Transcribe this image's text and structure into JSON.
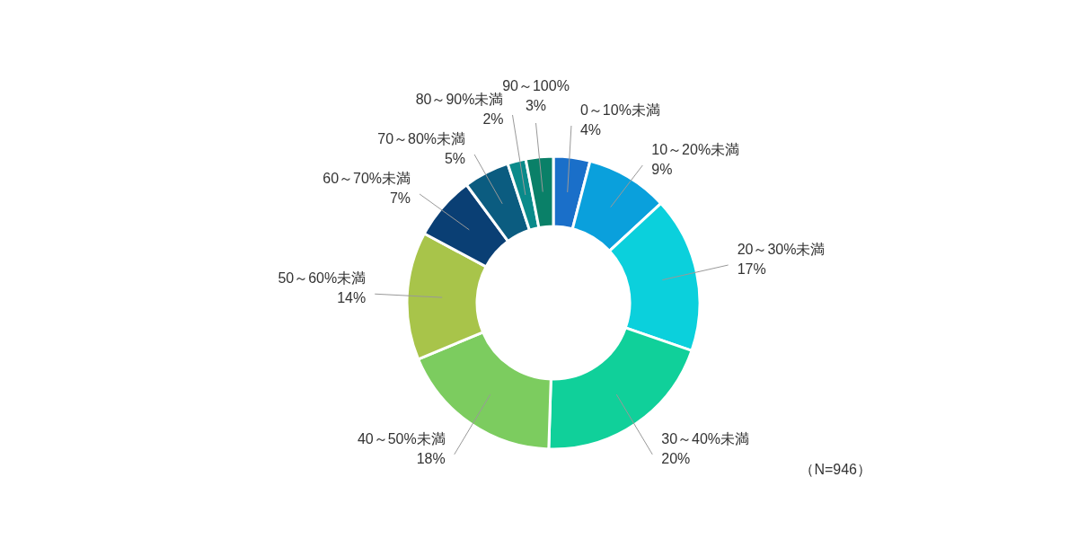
{
  "chart_data": {
    "type": "donut",
    "categories": [
      "0～10%未満",
      "10～20%未満",
      "20～30%未満",
      "30～40%未満",
      "40～50%未満",
      "50～60%未満",
      "60～70%未満",
      "70～80%未満",
      "80～90%未満",
      "90～100%"
    ],
    "values": [
      4,
      9,
      17,
      20,
      18,
      14,
      7,
      5,
      2,
      3
    ],
    "value_labels": [
      "4%",
      "9%",
      "17%",
      "20%",
      "18%",
      "14%",
      "7%",
      "5%",
      "2%",
      "3%"
    ],
    "colors": [
      "#1a6fc9",
      "#0aa0dc",
      "#0bd0dc",
      "#10d09a",
      "#7ccc5f",
      "#a8c44a",
      "#0a3f74",
      "#0b5c80",
      "#0a8a8a",
      "#0a8068"
    ],
    "annotations": [
      "（N=946）"
    ]
  }
}
